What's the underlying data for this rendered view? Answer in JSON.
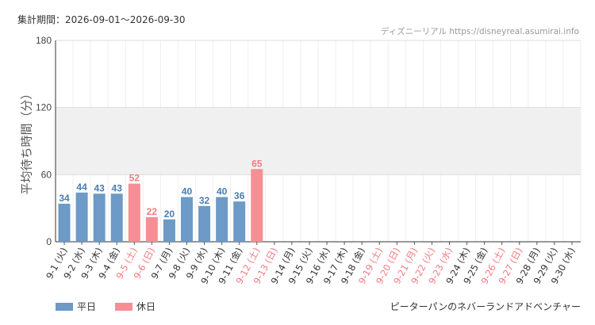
{
  "header": {
    "period": "集計期間：2026-09-01～2026-09-30",
    "source": "ディズニーリアル https://disneyreal.asumirai.info"
  },
  "footer": {
    "attraction": "ピーターパンのネバーランドアドベンチャー"
  },
  "colors": {
    "weekday": "#6d9ac6",
    "holiday": "#f58f95",
    "weekday_text": "#4a7cb0",
    "holiday_text": "#f07a82",
    "band": "#f0f0f0",
    "grid": "#dddddd"
  },
  "chart_data": {
    "type": "bar",
    "ylabel": "平均待ち時間（分）",
    "ylim": [
      0,
      180
    ],
    "yticks": [
      0,
      60,
      120,
      180
    ],
    "band": [
      60,
      120
    ],
    "legend": [
      {
        "name": "平日",
        "key": "weekday"
      },
      {
        "name": "休日",
        "key": "holiday"
      }
    ],
    "categories": [
      "9-1 (火)",
      "9-2 (水)",
      "9-3 (木)",
      "9-4 (金)",
      "9-5 (土)",
      "9-6 (日)",
      "9-7 (月)",
      "9-8 (火)",
      "9-9 (水)",
      "9-10 (木)",
      "9-11 (金)",
      "9-12 (土)",
      "9-13 (日)",
      "9-14 (月)",
      "9-15 (火)",
      "9-16 (水)",
      "9-17 (木)",
      "9-18 (金)",
      "9-19 (土)",
      "9-20 (日)",
      "9-21 (月)",
      "9-22 (火)",
      "9-23 (水)",
      "9-24 (木)",
      "9-25 (金)",
      "9-26 (土)",
      "9-27 (日)",
      "9-28 (月)",
      "9-29 (火)",
      "9-30 (水)"
    ],
    "day_type": [
      "weekday",
      "weekday",
      "weekday",
      "weekday",
      "holiday",
      "holiday",
      "weekday",
      "weekday",
      "weekday",
      "weekday",
      "weekday",
      "holiday",
      "holiday",
      "weekday",
      "weekday",
      "weekday",
      "weekday",
      "weekday",
      "holiday",
      "holiday",
      "holiday",
      "holiday",
      "holiday",
      "weekday",
      "weekday",
      "holiday",
      "holiday",
      "weekday",
      "weekday",
      "weekday"
    ],
    "values": [
      34,
      44,
      43,
      43,
      52,
      22,
      20,
      40,
      32,
      40,
      36,
      65,
      null,
      null,
      null,
      null,
      null,
      null,
      null,
      null,
      null,
      null,
      null,
      null,
      null,
      null,
      null,
      null,
      null,
      null
    ]
  }
}
